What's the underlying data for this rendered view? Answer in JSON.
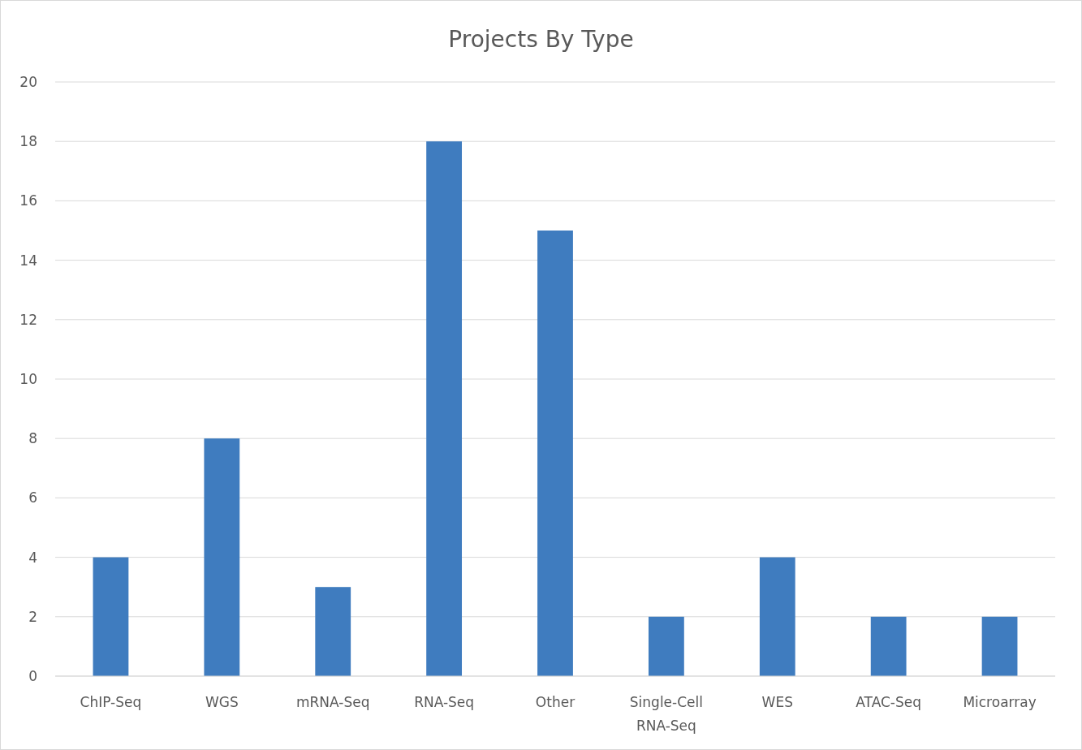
{
  "chart_data": {
    "type": "bar",
    "title": "Projects By Type",
    "categories": [
      "ChIP-Seq",
      "WGS",
      "mRNA-Seq",
      "RNA-Seq",
      "Other",
      "Single-Cell RNA-Seq",
      "WES",
      "ATAC-Seq",
      "Microarray"
    ],
    "values": [
      4,
      8,
      3,
      18,
      15,
      2,
      4,
      2,
      2
    ],
    "color": "#3f7cbf",
    "ylim": [
      0,
      20
    ],
    "yticks": [
      0,
      2,
      4,
      6,
      8,
      10,
      12,
      14,
      16,
      18,
      20
    ],
    "grid": "y"
  }
}
